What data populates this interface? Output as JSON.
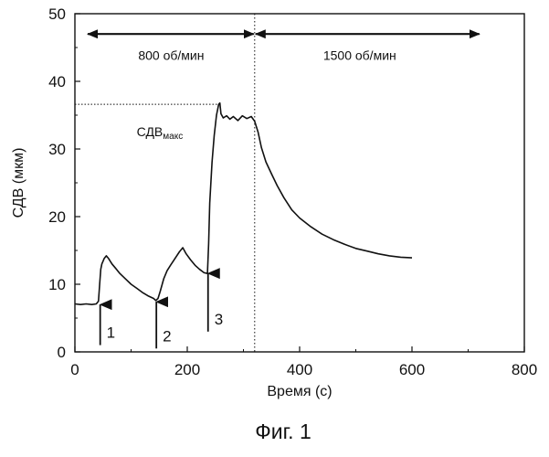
{
  "chart_data": {
    "type": "line",
    "caption": "Фиг. 1",
    "xlabel": "Время (с)",
    "ylabel": "СДВ (мкм)",
    "xlim": [
      0,
      800
    ],
    "ylim": [
      0,
      50
    ],
    "xticks": [
      "0",
      "200",
      "400",
      "600",
      "800"
    ],
    "yticks": [
      "0",
      "10",
      "20",
      "30",
      "40",
      "50"
    ],
    "grid": false,
    "series": [
      {
        "x": [
          0,
          10,
          20,
          30,
          38,
          42,
          44,
          46,
          48,
          50,
          52,
          56,
          60,
          66,
          72,
          80,
          90,
          100,
          110,
          120,
          130,
          140,
          144,
          148,
          152,
          158,
          164,
          170,
          178,
          186,
          192,
          198,
          206,
          214,
          222,
          230,
          236,
          238,
          240,
          244,
          248,
          252,
          256,
          258,
          260,
          264,
          270,
          276,
          282,
          290,
          298,
          306,
          314,
          320,
          326,
          332,
          340,
          350,
          360,
          372,
          386,
          400,
          420,
          440,
          460,
          480,
          500,
          520,
          540,
          560,
          580,
          600
        ],
        "y": [
          7.1,
          7.0,
          7.1,
          7.0,
          7.1,
          7.5,
          10.0,
          12.2,
          13.0,
          13.4,
          13.8,
          14.2,
          13.8,
          13.0,
          12.4,
          11.6,
          10.8,
          10.0,
          9.4,
          8.8,
          8.3,
          7.9,
          7.6,
          7.9,
          9.0,
          10.8,
          12.0,
          12.8,
          13.8,
          14.8,
          15.4,
          14.5,
          13.6,
          12.8,
          12.2,
          11.7,
          11.6,
          16.0,
          22.0,
          28.0,
          32.0,
          35.0,
          36.6,
          36.8,
          35.2,
          34.6,
          34.9,
          34.4,
          34.8,
          34.2,
          34.9,
          34.5,
          34.8,
          34.1,
          32.5,
          30.2,
          28.1,
          26.3,
          24.6,
          22.8,
          21.0,
          19.8,
          18.5,
          17.4,
          16.6,
          15.9,
          15.3,
          14.9,
          14.5,
          14.2,
          14.0,
          13.9
        ]
      }
    ],
    "annotations": {
      "region_left": "800 об/мин",
      "region_right": "1500 об/мин",
      "boundary_x": 320,
      "max_value": 36.6,
      "max_label_base": "СДВ",
      "max_label_sub": "макс",
      "markers": [
        {
          "label": "1",
          "x": 45,
          "y_tip": 7.0,
          "y_base": 1.0
        },
        {
          "label": "2",
          "x": 145,
          "y_tip": 7.4,
          "y_base": 0.5
        },
        {
          "label": "3",
          "x": 237,
          "y_tip": 11.6,
          "y_base": 3.0
        }
      ]
    }
  }
}
